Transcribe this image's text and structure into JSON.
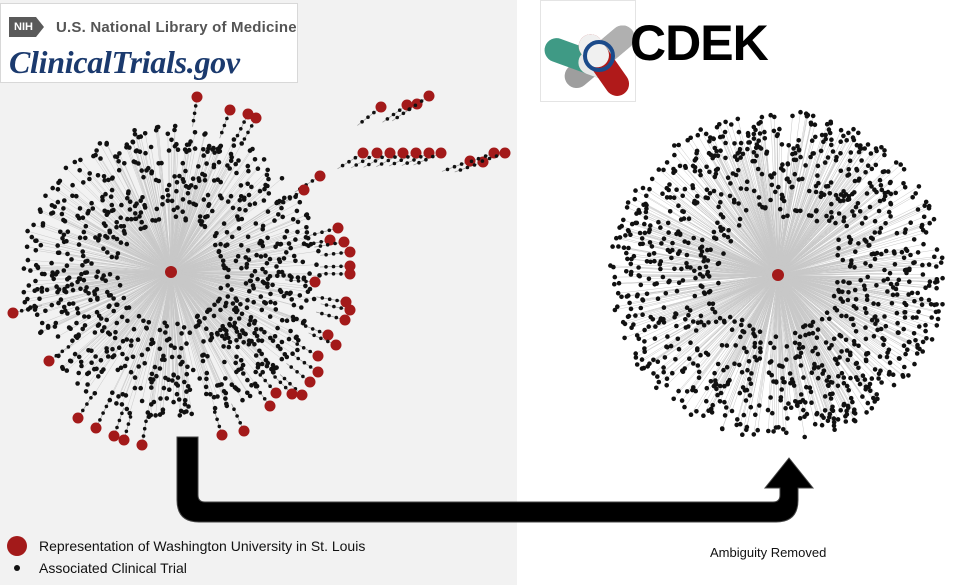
{
  "nih_logo": {
    "badge": "NIH",
    "organization": "U.S. National Library of Medicine",
    "site": "ClinicalTrials.gov"
  },
  "cdek_logo": {
    "title": "CDEK"
  },
  "legend": {
    "institution": "Representation of Washington University in St. Louis",
    "trial": "Associated Clinical Trial"
  },
  "caption": "Ambiguity Removed",
  "colors": {
    "institution_node": "#a31a1a",
    "trial_node": "#111111",
    "edge": "#c8c8c8",
    "arrow": "#000000"
  }
}
